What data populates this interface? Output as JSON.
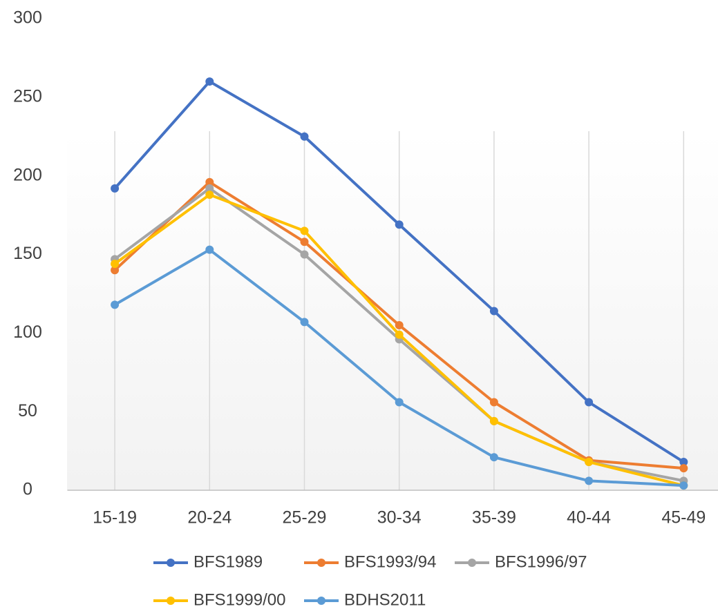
{
  "chart_data": {
    "type": "line",
    "categories": [
      "15-19",
      "20-24",
      "25-29",
      "30-34",
      "35-39",
      "40-44",
      "45-49"
    ],
    "series": [
      {
        "name": "BFS1989",
        "color": "#4472c4",
        "values": [
          192,
          260,
          225,
          169,
          114,
          56,
          18
        ]
      },
      {
        "name": "BFS1993/94",
        "color": "#ed7d31",
        "values": [
          140,
          196,
          158,
          105,
          56,
          19,
          14
        ]
      },
      {
        "name": "BFS1996/97",
        "color": "#a5a5a5",
        "values": [
          147,
          192,
          150,
          96,
          44,
          18,
          6
        ]
      },
      {
        "name": "BFS1999/00",
        "color": "#ffc000",
        "values": [
          144,
          188,
          165,
          99,
          44,
          18,
          3
        ]
      },
      {
        "name": "BDHS2011",
        "color": "#5b9bd5",
        "values": [
          118,
          153,
          107,
          56,
          21,
          6,
          3
        ]
      }
    ],
    "ylim": [
      0,
      300
    ],
    "yticks": [
      0,
      50,
      100,
      150,
      200,
      250,
      300
    ],
    "grid": true,
    "legend": "bottom"
  }
}
